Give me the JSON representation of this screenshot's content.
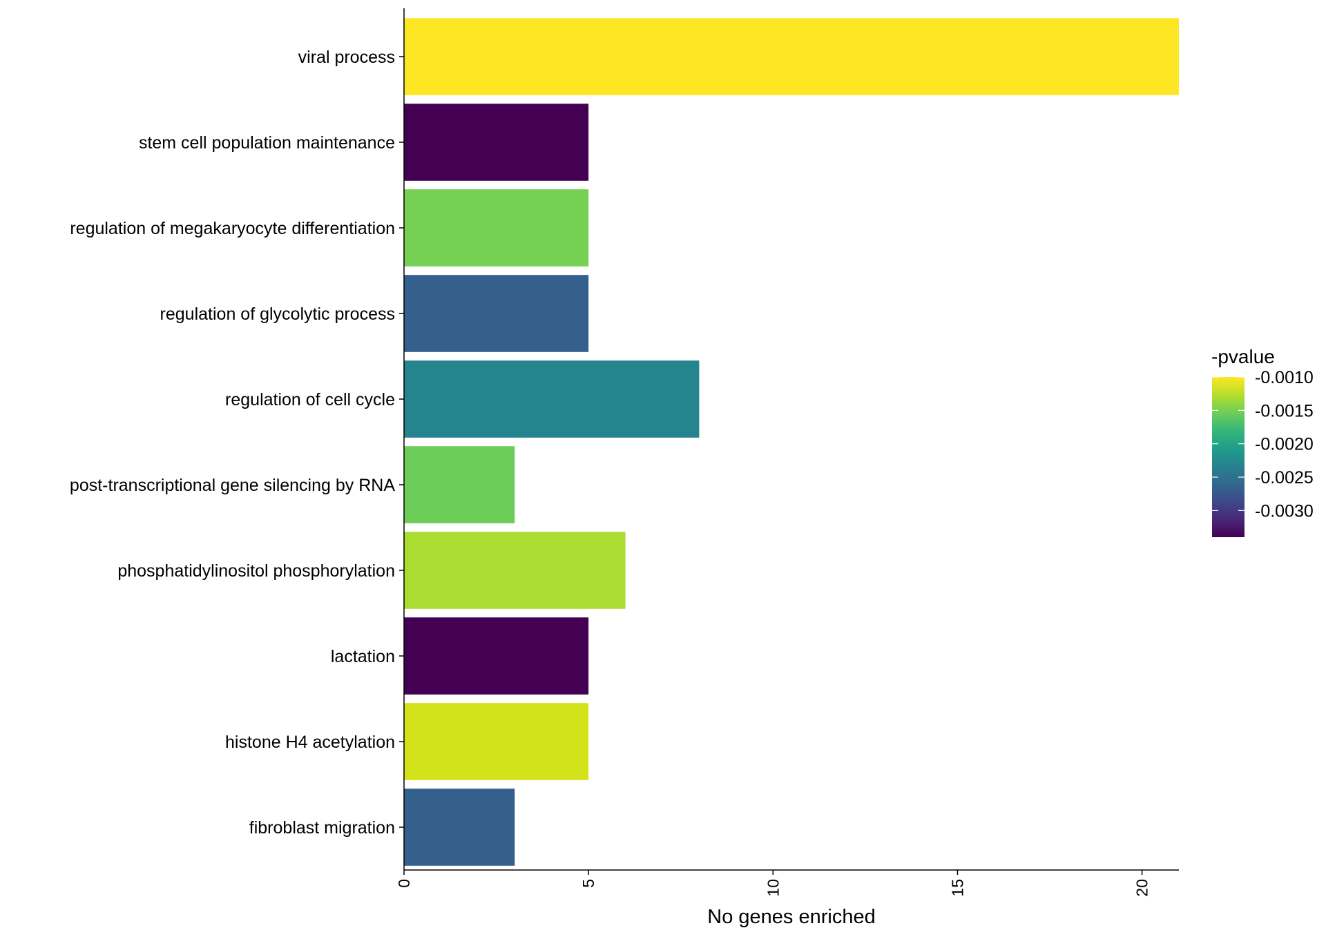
{
  "chart_data": {
    "type": "bar",
    "orientation": "horizontal",
    "title": "",
    "xlabel": "No genes enriched",
    "ylabel": "",
    "xlim": [
      0,
      21
    ],
    "x_ticks": [
      0,
      5,
      10,
      15,
      20
    ],
    "grid": false,
    "categories": [
      "viral process",
      "stem cell population maintenance",
      "regulation of megakaryocyte differentiation",
      "regulation of glycolytic process",
      "regulation of cell cycle",
      "post-transcriptional gene silencing by RNA",
      "phosphatidylinositol phosphorylation",
      "lactation",
      "histone H4 acetylation",
      "fibroblast migration"
    ],
    "values": [
      21,
      5,
      5,
      5,
      8,
      3,
      6,
      5,
      5,
      3
    ],
    "colors": [
      "#FDE725",
      "#440154",
      "#75D054",
      "#355F8D",
      "#25848E",
      "#6CCE59",
      "#AADC32",
      "#440154",
      "#D2E21B",
      "#355F8D"
    ],
    "pvalue_fill": [
      -0.001,
      -0.0034,
      -0.0015,
      -0.0029,
      -0.0024,
      -0.0015,
      -0.0013,
      -0.0034,
      -0.0011,
      -0.0029
    ],
    "legend": {
      "title": "-pvalue",
      "placement": "right",
      "range": [
        -0.0034,
        -0.001
      ],
      "ticks": [
        -0.001,
        -0.0015,
        -0.002,
        -0.0025,
        -0.003
      ],
      "tick_labels": [
        "-0.0010",
        "-0.0015",
        "-0.0020",
        "-0.0025",
        "-0.0030"
      ],
      "colormap": [
        "#440154",
        "#482878",
        "#3E4989",
        "#31688E",
        "#26828E",
        "#1F9E89",
        "#35B779",
        "#6ECE58",
        "#B5DE2B",
        "#FDE725"
      ]
    }
  }
}
